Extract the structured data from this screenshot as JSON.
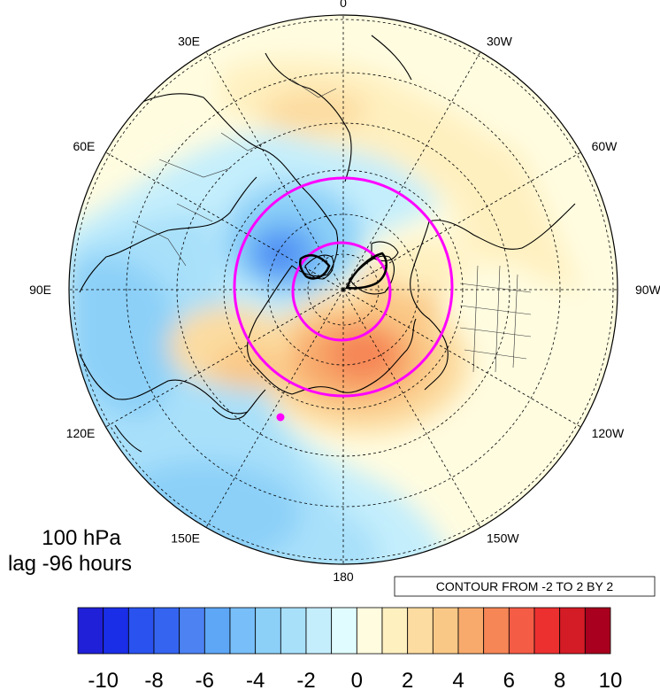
{
  "map": {
    "projection": "polar-stereographic",
    "hemisphere": "north",
    "longitude_labels": [
      {
        "text": "0",
        "lon": 0
      },
      {
        "text": "30W",
        "lon": -30
      },
      {
        "text": "60W",
        "lon": -60
      },
      {
        "text": "90W",
        "lon": -90
      },
      {
        "text": "120W",
        "lon": -120
      },
      {
        "text": "150W",
        "lon": -150
      },
      {
        "text": "180",
        "lon": 180
      },
      {
        "text": "150E",
        "lon": 150
      },
      {
        "text": "120E",
        "lon": 120
      },
      {
        "text": "90E",
        "lon": 90
      },
      {
        "text": "60E",
        "lon": 60
      },
      {
        "text": "30E",
        "lon": 30
      }
    ],
    "circle_color": "#ff00ff",
    "marker_color": "#ff00ff"
  },
  "title": {
    "line1": "100 hPa",
    "line2": "lag -96 hours"
  },
  "contour_info": "CONTOUR FROM -2 TO 2 BY 2",
  "colorbar": {
    "labels": [
      "-10",
      "-8",
      "-6",
      "-4",
      "-2",
      "0",
      "2",
      "4",
      "6",
      "8",
      "10"
    ],
    "colors": [
      "#2020d8",
      "#1a2ee8",
      "#2a52ee",
      "#3464f0",
      "#4c82f2",
      "#5ea6f6",
      "#78bef8",
      "#8cd0f8",
      "#a8e0fa",
      "#c4eefc",
      "#e0fcfe",
      "#fffce0",
      "#fff0c0",
      "#fcdca0",
      "#fac886",
      "#f8aa6c",
      "#f68656",
      "#f45c46",
      "#ec3030",
      "#d41c26",
      "#a8001e"
    ]
  }
}
